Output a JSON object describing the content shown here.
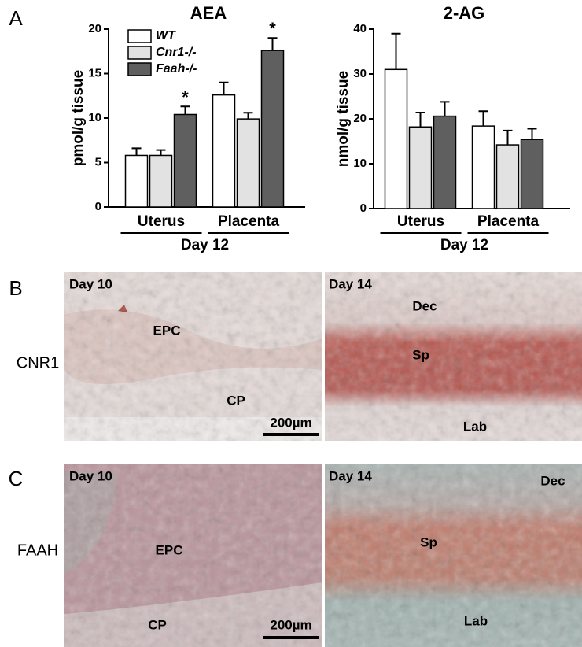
{
  "chart_data": [
    {
      "type": "bar",
      "title": "AEA",
      "ylabel": "pmol/g tissue",
      "xlabel": "Day 12",
      "categories": [
        "Uterus",
        "Placenta"
      ],
      "series": [
        {
          "name": "WT",
          "color": "#ffffff",
          "values": [
            5.8,
            12.6
          ],
          "errors": [
            0.8,
            1.4
          ]
        },
        {
          "name": "Cnr1-/-",
          "color": "#e2e2e2",
          "values": [
            5.8,
            9.9
          ],
          "errors": [
            0.6,
            0.7
          ]
        },
        {
          "name": "Faah-/-",
          "color": "#5f5f5f",
          "values": [
            10.4,
            17.6
          ],
          "errors": [
            0.9,
            1.4
          ]
        }
      ],
      "annotations": [
        "*",
        "*"
      ],
      "ylim": [
        0,
        20
      ],
      "yticks": [
        0,
        5,
        10,
        15,
        20
      ],
      "legend": "upper left"
    },
    {
      "type": "bar",
      "title": "2-AG",
      "ylabel": "nmol/g tissue",
      "xlabel": "Day 12",
      "categories": [
        "Uterus",
        "Placenta"
      ],
      "series": [
        {
          "color": "#ffffff",
          "values": [
            31,
            18.4
          ],
          "errors": [
            8,
            3.3
          ]
        },
        {
          "color": "#e2e2e2",
          "values": [
            18.2,
            14.2
          ],
          "errors": [
            3.2,
            3.2
          ]
        },
        {
          "color": "#5f5f5f",
          "values": [
            20.6,
            15.4
          ],
          "errors": [
            3.2,
            2.4
          ]
        }
      ],
      "ylim": [
        0,
        40
      ],
      "yticks": [
        0,
        10,
        20,
        30,
        40
      ]
    }
  ],
  "panels": {
    "a": "A",
    "b": "B",
    "c": "C",
    "b_row": "CNR1",
    "c_row": "FAAH",
    "b_left": {
      "day": "Day 10",
      "epc": "EPC",
      "cp": "CP",
      "scale": "200µm"
    },
    "b_right": {
      "day": "Day 14",
      "dec": "Dec",
      "sp": "Sp",
      "lab": "Lab"
    },
    "c_left": {
      "day": "Day 10",
      "epc": "EPC",
      "cp": "CP",
      "scale": "200µm"
    },
    "c_right": {
      "day": "Day 14",
      "dec": "Dec",
      "sp": "Sp",
      "lab": "Lab"
    }
  }
}
